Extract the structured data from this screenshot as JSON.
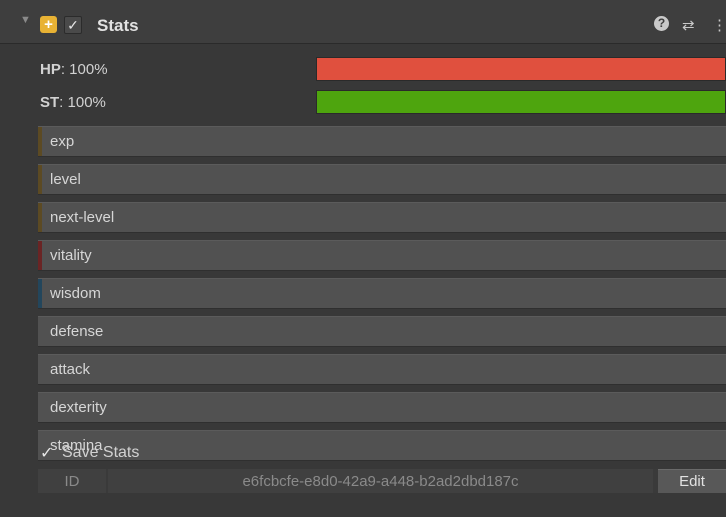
{
  "header": {
    "foldout_icon": "triangle-down-icon",
    "component_icon": "plus-component-icon",
    "enabled_check": "✓",
    "title": "Stats",
    "help_icon": "?",
    "presets_icon": "⇄",
    "menu_icon": "⋮"
  },
  "bars": [
    {
      "key": "HP",
      "value": ": 100%",
      "fraction": 1.0,
      "color": "#e0503e"
    },
    {
      "key": "ST",
      "value": ": 100%",
      "fraction": 1.0,
      "color": "#4ea50e"
    }
  ],
  "stats": [
    {
      "name": "exp",
      "accent": "#5c4a23"
    },
    {
      "name": "level",
      "accent": "#5c4a23"
    },
    {
      "name": "next-level",
      "accent": "#5c4a23"
    },
    {
      "name": "vitality",
      "accent": "#6a2424"
    },
    {
      "name": "wisdom",
      "accent": "#23465c"
    },
    {
      "name": "defense",
      "accent": "#515151"
    },
    {
      "name": "attack",
      "accent": "#515151"
    },
    {
      "name": "dexterity",
      "accent": "#515151"
    },
    {
      "name": "stamina",
      "accent": "#515151"
    }
  ],
  "save": {
    "check": "✓",
    "label": "Save Stats"
  },
  "id_row": {
    "label": "ID",
    "value": "e6fcbcfe-e8d0-42a9-a448-b2ad2dbd187c",
    "edit_label": "Edit"
  }
}
